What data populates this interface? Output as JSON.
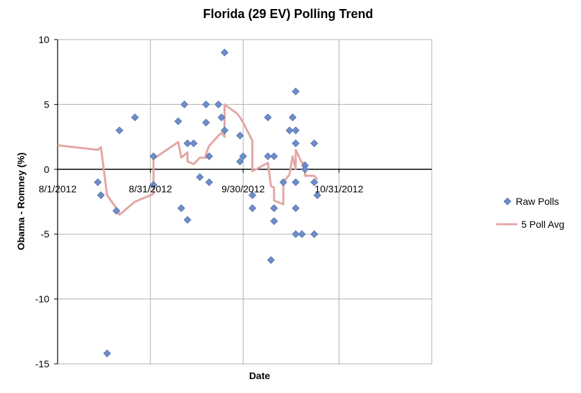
{
  "chart_data": {
    "type": "scatter",
    "title": "Florida (29 EV) Polling Trend",
    "xlabel": "Date",
    "ylabel": "Obama - Romney (%)",
    "xlim": [
      "2012-08-01",
      "2012-11-30"
    ],
    "ylim": [
      -15,
      10
    ],
    "y_ticks": [
      10,
      5,
      0,
      -5,
      -10,
      -15
    ],
    "y_tick_labels": [
      "10",
      "5",
      "0",
      "-5",
      "-10",
      "-15"
    ],
    "x_ticks": [
      "2012-08-01",
      "2012-08-31",
      "2012-09-30",
      "2012-10-31"
    ],
    "x_tick_labels": [
      "8/1/2012",
      "8/31/2012",
      "9/30/2012",
      "10/31/2012"
    ],
    "grid": true,
    "legend_position": "right",
    "colors": {
      "raw": "#6f8dc9",
      "raw_edge": "#4f6fa8",
      "avg": "#e3a7a4",
      "grid": "#b0b0b0",
      "axis": "#000000"
    },
    "series": [
      {
        "name": "Raw Polls",
        "kind": "scatter",
        "points": [
          {
            "x": "2012-08-14",
            "y": -1.0
          },
          {
            "x": "2012-08-15",
            "y": -2.0
          },
          {
            "x": "2012-08-17",
            "y": -14.2
          },
          {
            "x": "2012-08-20",
            "y": -3.2
          },
          {
            "x": "2012-08-21",
            "y": 3.0
          },
          {
            "x": "2012-08-26",
            "y": 4.0
          },
          {
            "x": "2012-09-01",
            "y": 1.0
          },
          {
            "x": "2012-09-01",
            "y": -1.2
          },
          {
            "x": "2012-09-09",
            "y": 3.7
          },
          {
            "x": "2012-09-10",
            "y": -3.0
          },
          {
            "x": "2012-09-11",
            "y": 5.0
          },
          {
            "x": "2012-09-12",
            "y": 2.0
          },
          {
            "x": "2012-09-12",
            "y": -3.9
          },
          {
            "x": "2012-09-14",
            "y": 2.0
          },
          {
            "x": "2012-09-16",
            "y": -0.6
          },
          {
            "x": "2012-09-18",
            "y": 5.0
          },
          {
            "x": "2012-09-18",
            "y": 3.6
          },
          {
            "x": "2012-09-19",
            "y": 1.0
          },
          {
            "x": "2012-09-19",
            "y": -1.0
          },
          {
            "x": "2012-09-22",
            "y": 5.0
          },
          {
            "x": "2012-09-23",
            "y": 4.0
          },
          {
            "x": "2012-09-24",
            "y": 9.0
          },
          {
            "x": "2012-09-24",
            "y": 3.0
          },
          {
            "x": "2012-09-29",
            "y": 2.6
          },
          {
            "x": "2012-09-29",
            "y": 0.6
          },
          {
            "x": "2012-09-30",
            "y": 1.0
          },
          {
            "x": "2012-10-03",
            "y": -2.0
          },
          {
            "x": "2012-10-03",
            "y": -3.0
          },
          {
            "x": "2012-10-08",
            "y": 4.0
          },
          {
            "x": "2012-10-08",
            "y": 1.0
          },
          {
            "x": "2012-10-09",
            "y": -7.0
          },
          {
            "x": "2012-10-10",
            "y": 1.0
          },
          {
            "x": "2012-10-10",
            "y": -3.0
          },
          {
            "x": "2012-10-10",
            "y": -4.0
          },
          {
            "x": "2012-10-13",
            "y": -1.0
          },
          {
            "x": "2012-10-15",
            "y": 3.0
          },
          {
            "x": "2012-10-16",
            "y": 4.0
          },
          {
            "x": "2012-10-17",
            "y": 6.0
          },
          {
            "x": "2012-10-17",
            "y": 3.0
          },
          {
            "x": "2012-10-17",
            "y": 2.0
          },
          {
            "x": "2012-10-17",
            "y": -1.0
          },
          {
            "x": "2012-10-17",
            "y": -3.0
          },
          {
            "x": "2012-10-17",
            "y": -5.0
          },
          {
            "x": "2012-10-19",
            "y": -5.0
          },
          {
            "x": "2012-10-20",
            "y": 0.3
          },
          {
            "x": "2012-10-20",
            "y": 0.0
          },
          {
            "x": "2012-10-23",
            "y": 2.0
          },
          {
            "x": "2012-10-23",
            "y": -1.0
          },
          {
            "x": "2012-10-23",
            "y": -5.0
          },
          {
            "x": "2012-10-24",
            "y": -2.0
          }
        ]
      },
      {
        "name": "5 Poll Avg",
        "kind": "line",
        "points": [
          {
            "x": "2012-08-01",
            "y": 1.85
          },
          {
            "x": "2012-08-14",
            "y": 1.5
          },
          {
            "x": "2012-08-15",
            "y": 1.7
          },
          {
            "x": "2012-08-17",
            "y": -2.0
          },
          {
            "x": "2012-08-20",
            "y": -3.0
          },
          {
            "x": "2012-08-21",
            "y": -3.5
          },
          {
            "x": "2012-08-26",
            "y": -2.5
          },
          {
            "x": "2012-09-01",
            "y": -1.9
          },
          {
            "x": "2012-09-01",
            "y": 0.8
          },
          {
            "x": "2012-09-09",
            "y": 2.1
          },
          {
            "x": "2012-09-10",
            "y": 0.9
          },
          {
            "x": "2012-09-11",
            "y": 1.1
          },
          {
            "x": "2012-09-12",
            "y": 1.3
          },
          {
            "x": "2012-09-12",
            "y": 0.6
          },
          {
            "x": "2012-09-14",
            "y": 0.4
          },
          {
            "x": "2012-09-16",
            "y": 0.9
          },
          {
            "x": "2012-09-18",
            "y": 0.9
          },
          {
            "x": "2012-09-18",
            "y": 1.2
          },
          {
            "x": "2012-09-19",
            "y": 1.8
          },
          {
            "x": "2012-09-22",
            "y": 2.6
          },
          {
            "x": "2012-09-23",
            "y": 2.8
          },
          {
            "x": "2012-09-24",
            "y": 2.5
          },
          {
            "x": "2012-09-24",
            "y": 5.0
          },
          {
            "x": "2012-09-28",
            "y": 4.3
          },
          {
            "x": "2012-09-29",
            "y": 4.0
          },
          {
            "x": "2012-09-30",
            "y": 3.6
          },
          {
            "x": "2012-10-03",
            "y": 2.2
          },
          {
            "x": "2012-10-03",
            "y": -0.15
          },
          {
            "x": "2012-10-08",
            "y": 0.5
          },
          {
            "x": "2012-10-09",
            "y": -1.3
          },
          {
            "x": "2012-10-10",
            "y": -1.4
          },
          {
            "x": "2012-10-10",
            "y": -2.4
          },
          {
            "x": "2012-10-13",
            "y": -2.7
          },
          {
            "x": "2012-10-13",
            "y": -1.0
          },
          {
            "x": "2012-10-15",
            "y": -0.4
          },
          {
            "x": "2012-10-16",
            "y": 1.0
          },
          {
            "x": "2012-10-17",
            "y": 0.0
          },
          {
            "x": "2012-10-17",
            "y": 1.5
          },
          {
            "x": "2012-10-19",
            "y": 0.5
          },
          {
            "x": "2012-10-20",
            "y": 0.5
          },
          {
            "x": "2012-10-20",
            "y": -0.5
          },
          {
            "x": "2012-10-23",
            "y": -0.5
          },
          {
            "x": "2012-10-24",
            "y": -0.8
          }
        ]
      }
    ]
  }
}
